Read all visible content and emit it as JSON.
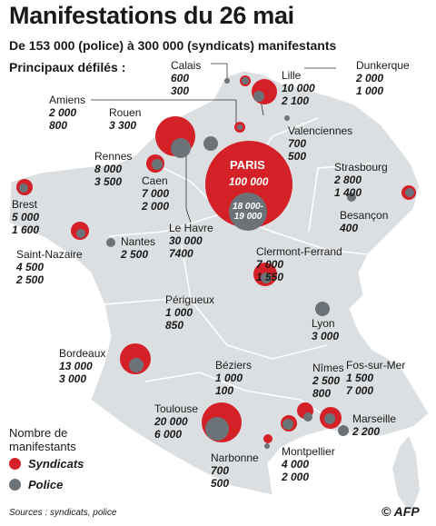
{
  "header": {
    "title": "Manifestations du 26 mai",
    "subtitle": "De 153 000 (police) à 300 000 (syndicats) manifestants",
    "section": "Principaux défilés :"
  },
  "colors": {
    "syndicats": "#d42027",
    "police": "#6b7378",
    "land": "#dcdfe1",
    "border": "#ffffff"
  },
  "paris": {
    "name": "PARIS",
    "syndicats": "100 000",
    "police": "18 000-19 000"
  },
  "cities": [
    {
      "id": "calais",
      "name": "Calais",
      "syndicats": "600",
      "police": "300"
    },
    {
      "id": "lille",
      "name": "Lille",
      "syndicats": "10 000",
      "police": "2 100"
    },
    {
      "id": "dunkerque",
      "name": "Dunkerque",
      "syndicats": "2 000",
      "police": "1 000"
    },
    {
      "id": "amiens",
      "name": "Amiens",
      "syndicats": "2 000",
      "police": "800"
    },
    {
      "id": "rouen",
      "name": "Rouen",
      "syndicats": "",
      "police": "3 300"
    },
    {
      "id": "valenciennes",
      "name": "Valenciennes",
      "syndicats": "700",
      "police": "500"
    },
    {
      "id": "rennes",
      "name": "Rennes",
      "syndicats": "8 000",
      "police": "3 500"
    },
    {
      "id": "caen",
      "name": "Caen",
      "syndicats": "7 000",
      "police": "2 000"
    },
    {
      "id": "strasbourg",
      "name": "Strasbourg",
      "syndicats": "2 800",
      "police": "1 400"
    },
    {
      "id": "brest",
      "name": "Brest",
      "syndicats": "5 000",
      "police": "1 600"
    },
    {
      "id": "lehavre",
      "name": "Le Havre",
      "syndicats": "30 000",
      "police": "7400"
    },
    {
      "id": "besancon",
      "name": "Besançon",
      "syndicats": "",
      "police": "400"
    },
    {
      "id": "nantes",
      "name": "Nantes",
      "syndicats": "",
      "police": "2 500"
    },
    {
      "id": "saintnazaire",
      "name": "Saint-Nazaire",
      "syndicats": "4 500",
      "police": "2 500"
    },
    {
      "id": "clermont",
      "name": "Clermont-Ferrand",
      "syndicats": "7 000",
      "police": "1 550"
    },
    {
      "id": "perigueux",
      "name": "Périgueux",
      "syndicats": "1 000",
      "police": "850"
    },
    {
      "id": "lyon",
      "name": "Lyon",
      "syndicats": "",
      "police": "3 000"
    },
    {
      "id": "bordeaux",
      "name": "Bordeaux",
      "syndicats": "13 000",
      "police": "3 000"
    },
    {
      "id": "beziers",
      "name": "Béziers",
      "syndicats": "1 000",
      "police": "100"
    },
    {
      "id": "nimes",
      "name": "Nîmes",
      "syndicats": "2 500",
      "police": "800"
    },
    {
      "id": "fos",
      "name": "Fos-sur-Mer",
      "syndicats": "1 500",
      "police": "7 000"
    },
    {
      "id": "toulouse",
      "name": "Toulouse",
      "syndicats": "20 000",
      "police": "6 000"
    },
    {
      "id": "marseille",
      "name": "Marseille",
      "syndicats": "",
      "police": "2 200"
    },
    {
      "id": "montpellier",
      "name": "Montpellier",
      "syndicats": "4 000",
      "police": "2 000"
    },
    {
      "id": "narbonne",
      "name": "Narbonne",
      "syndicats": "700",
      "police": "500"
    }
  ],
  "legend": {
    "title": "Nombre de manifestants",
    "syndicats": "Syndicats",
    "police": "Police"
  },
  "footer": {
    "source": "Sources : syndicats, police",
    "credit": "© AFP"
  }
}
